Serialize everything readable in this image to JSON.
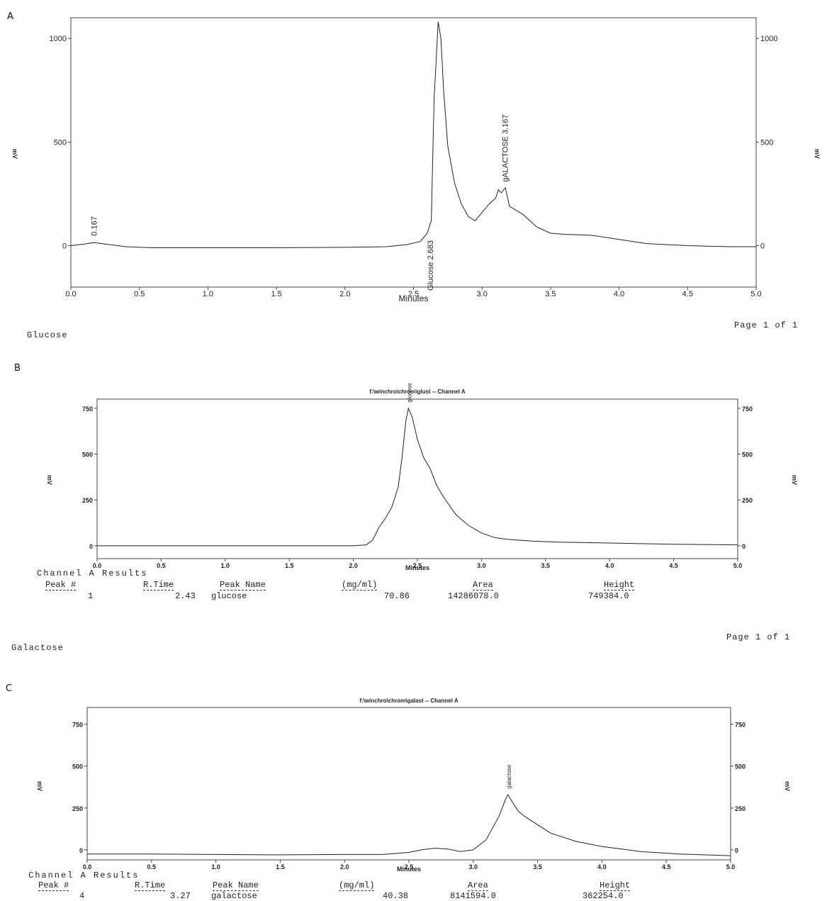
{
  "chart_data": [
    {
      "panel": "A",
      "type": "line",
      "title": "",
      "xlabel": "Minutes",
      "ylabel": "mV",
      "xlim": [
        0.0,
        5.0
      ],
      "ylim": [
        -200,
        1100
      ],
      "x_ticks": [
        "0.0",
        "0.5",
        "1.0",
        "1.5",
        "2.0",
        "2.5",
        "3.0",
        "3.5",
        "4.0",
        "4.5",
        "5.0"
      ],
      "y_ticks": [
        "0",
        "500",
        "1000"
      ],
      "annotations": [
        {
          "text": "0.167",
          "x": 0.167,
          "y": 20
        },
        {
          "text": "Glucose 2.683",
          "x": 2.683,
          "y": 60
        },
        {
          "text": "gALACTOSE 3.167",
          "x": 3.167,
          "y": 280
        }
      ],
      "series": [
        {
          "x": [
            0.0,
            0.1,
            0.17,
            0.25,
            0.4,
            0.6,
            1.0,
            1.5,
            2.0,
            2.3,
            2.45,
            2.55,
            2.6,
            2.63,
            2.65,
            2.68,
            2.7,
            2.72,
            2.75,
            2.8,
            2.85,
            2.9,
            2.95,
            3.0,
            3.05,
            3.1,
            3.12,
            3.14,
            3.17,
            3.2,
            3.25,
            3.3,
            3.4,
            3.5,
            3.6,
            3.8,
            4.0,
            4.2,
            4.5,
            4.8,
            5.0
          ],
          "y": [
            0,
            8,
            15,
            8,
            -5,
            -10,
            -10,
            -10,
            -8,
            -5,
            5,
            20,
            60,
            120,
            700,
            1080,
            1000,
            750,
            480,
            300,
            200,
            140,
            120,
            160,
            200,
            230,
            270,
            255,
            280,
            190,
            170,
            150,
            90,
            60,
            55,
            50,
            30,
            10,
            0,
            -5,
            -5
          ]
        }
      ],
      "footer_left": "Glucose",
      "footer_right": "Page 1 of 1"
    },
    {
      "panel": "B",
      "type": "line",
      "title": "f:\\winchro\\chrom\\glust -- Channel A",
      "xlabel": "Minutes",
      "ylabel": "mV",
      "xlim": [
        0.0,
        5.0
      ],
      "ylim": [
        -70,
        800
      ],
      "x_ticks": [
        "0.0",
        "0.5",
        "1.0",
        "1.5",
        "2.0",
        "2.5",
        "3.0",
        "3.5",
        "4.0",
        "4.5",
        "5.0"
      ],
      "y_ticks": [
        "0",
        "250",
        "500",
        "750"
      ],
      "annotations": [
        {
          "text": "glucose",
          "x": 2.43,
          "y": 750
        }
      ],
      "series": [
        {
          "x": [
            0.0,
            0.5,
            1.0,
            1.5,
            2.0,
            2.1,
            2.15,
            2.2,
            2.25,
            2.3,
            2.35,
            2.38,
            2.41,
            2.43,
            2.46,
            2.5,
            2.55,
            2.6,
            2.65,
            2.7,
            2.75,
            2.8,
            2.9,
            3.0,
            3.1,
            3.2,
            3.4,
            3.6,
            4.0,
            4.5,
            5.0
          ],
          "y": [
            0,
            0,
            0,
            0,
            0,
            5,
            30,
            100,
            150,
            210,
            320,
            480,
            680,
            750,
            700,
            580,
            480,
            420,
            330,
            270,
            220,
            170,
            110,
            70,
            45,
            35,
            25,
            20,
            15,
            8,
            5
          ]
        }
      ],
      "results": {
        "title": "Channel A Results",
        "headers": [
          "Peak #",
          "R.Time",
          "Peak Name",
          "(mg/ml)",
          "Area",
          "Height"
        ],
        "rows": [
          [
            "1",
            "2.43",
            "glucose",
            "70.86",
            "14286078.0",
            "749384.0"
          ]
        ]
      },
      "footer_left": "Galactose",
      "footer_right": "Page 1 of 1"
    },
    {
      "panel": "C",
      "type": "line",
      "title": "f:\\winchro\\chrom\\galast -- Channel A",
      "xlabel": "Minutes",
      "ylabel": "mV",
      "xlim": [
        0.0,
        5.0
      ],
      "ylim": [
        -60,
        850
      ],
      "x_ticks": [
        "0.0",
        "0.5",
        "1.0",
        "1.5",
        "2.0",
        "2.5",
        "3.0",
        "3.5",
        "4.0",
        "4.5",
        "5.0"
      ],
      "y_ticks": [
        "0",
        "250",
        "500",
        "750"
      ],
      "annotations": [
        {
          "text": "galactose",
          "x": 3.27,
          "y": 330
        }
      ],
      "series": [
        {
          "x": [
            0.0,
            0.5,
            1.0,
            1.5,
            2.0,
            2.3,
            2.5,
            2.6,
            2.7,
            2.8,
            2.9,
            3.0,
            3.1,
            3.2,
            3.25,
            3.27,
            3.3,
            3.35,
            3.4,
            3.5,
            3.6,
            3.8,
            4.0,
            4.3,
            4.6,
            5.0
          ],
          "y": [
            -25,
            -25,
            -28,
            -30,
            -28,
            -28,
            -15,
            0,
            10,
            5,
            -10,
            0,
            60,
            200,
            300,
            330,
            290,
            230,
            200,
            150,
            100,
            50,
            20,
            -10,
            -25,
            -35
          ]
        }
      ],
      "results": {
        "title": "Channel A Results",
        "headers": [
          "Peak #",
          "R.Time",
          "Peak Name",
          "(mg/ml)",
          "Area",
          "Height"
        ],
        "rows": [
          [
            "4",
            "3.27",
            "galactose",
            "40.38",
            "8141594.0",
            "362254.0"
          ]
        ]
      }
    }
  ],
  "panel_labels": [
    "A",
    "B",
    "C"
  ]
}
